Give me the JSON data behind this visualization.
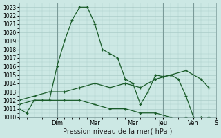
{
  "xlabel": "Pression niveau de la mer( hPa )",
  "background_color": "#cce8e4",
  "grid_color": "#aaccc8",
  "line_color": "#1a5c2a",
  "vline_color": "#7a9a98",
  "ylim": [
    1010,
    1023.5
  ],
  "ytick_min": 1010,
  "ytick_max": 1023,
  "xlim_min": 0,
  "xlim_max": 13.0,
  "day_labels": [
    "Dim",
    "Mar",
    "Mer",
    "Jeu",
    "Ven",
    "S"
  ],
  "day_positions": [
    2.5,
    5.0,
    7.5,
    9.5,
    11.5,
    13.0
  ],
  "line1_x": [
    0,
    0.5,
    1.0,
    1.5,
    2.0,
    2.5,
    3.0,
    3.5,
    4.0,
    4.5,
    5.0,
    5.5,
    6.0,
    6.5,
    7.0,
    7.5,
    8.0,
    8.5,
    9.0,
    9.5,
    10.0,
    10.5,
    11.0,
    11.5,
    12.0,
    12.5
  ],
  "line1_y": [
    1011,
    1010.5,
    1012,
    1012,
    1012,
    1016,
    1019,
    1021.5,
    1023,
    1023,
    1021,
    1018,
    1017.5,
    1017,
    1014.5,
    1014,
    1011.5,
    1013,
    1015,
    1014.8,
    1015,
    1014.5,
    1012.5,
    1010,
    1010,
    1010
  ],
  "line2_x": [
    0,
    1.0,
    2.0,
    3.0,
    4.0,
    5.0,
    6.0,
    7.0,
    8.0,
    9.0,
    10.0,
    11.0,
    12.0,
    12.5
  ],
  "line2_y": [
    1012,
    1012.5,
    1013,
    1013,
    1013.5,
    1014,
    1013.5,
    1014,
    1013.5,
    1014.5,
    1015,
    1015.5,
    1014.5,
    1013.5
  ],
  "line3_x": [
    0,
    1.0,
    2.0,
    3.0,
    4.0,
    5.0,
    6.0,
    7.0,
    8.0,
    9.0,
    10.0,
    11.0,
    12.0,
    12.5
  ],
  "line3_y": [
    1011.5,
    1012,
    1012,
    1012,
    1012,
    1011.5,
    1011,
    1011,
    1010.5,
    1010.5,
    1010,
    1010,
    1010,
    1010
  ]
}
